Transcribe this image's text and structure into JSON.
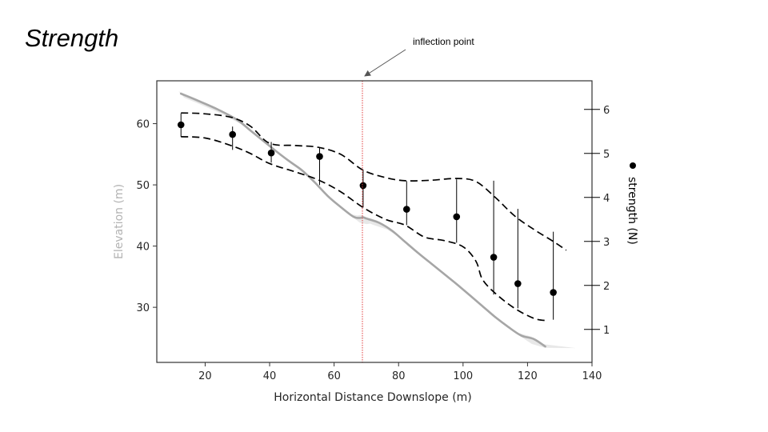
{
  "slide": {
    "title": "Strength"
  },
  "chart_data": {
    "type": "scatter",
    "xlabel": "Horizontal Distance Downslope (m)",
    "ylabel_left": "Elevation (m)",
    "ylabel_right": "strength (N)",
    "xlim": [
      5,
      140
    ],
    "ylim_left": [
      21,
      67
    ],
    "ylim_right": [
      0.25,
      6.65
    ],
    "x_ticks": [
      20,
      40,
      60,
      80,
      100,
      120,
      140
    ],
    "y_left_ticks": [
      30,
      40,
      50,
      60
    ],
    "y_right_ticks": [
      1,
      2,
      3,
      4,
      5,
      6
    ],
    "grid": false,
    "legend": "right-side vertical label with marker",
    "colors": {
      "profile": "#a6a6a6",
      "envelope": "#e6e6e6",
      "points": "#000000",
      "inflection": "#e03c3c",
      "ylabel_left": "#b3b3b3"
    },
    "annotation": {
      "text": "inflection point",
      "x": 70
    },
    "profile": {
      "x": [
        12.5,
        18,
        24,
        30,
        34,
        38,
        42,
        46,
        50,
        54,
        58,
        62,
        66,
        68,
        69,
        70,
        74,
        78,
        82,
        86,
        90,
        94,
        98,
        102,
        106,
        110,
        114,
        118,
        122,
        125.5
      ],
      "elevation": [
        64.9,
        63.7,
        62.3,
        60.6,
        58.9,
        57.2,
        55.5,
        53.9,
        52.4,
        50.4,
        48.2,
        46.4,
        44.8,
        44.6,
        44.7,
        44.5,
        43.8,
        42.5,
        40.7,
        38.9,
        37.2,
        35.5,
        33.8,
        32.0,
        30.2,
        28.4,
        26.8,
        25.4,
        24.8,
        23.6
      ]
    },
    "points": {
      "x": [
        12.5,
        28.5,
        40.5,
        55.5,
        69,
        82.5,
        98,
        109.5,
        117,
        128
      ],
      "strength": [
        5.65,
        5.43,
        5.01,
        4.93,
        4.27,
        3.73,
        3.56,
        2.64,
        2.04,
        1.84
      ],
      "lower": [
        5.38,
        5.08,
        4.79,
        4.28,
        3.77,
        3.37,
        2.97,
        1.79,
        1.48,
        1.22
      ],
      "upper": [
        5.91,
        5.61,
        5.26,
        5.12,
        4.63,
        4.37,
        4.41,
        4.38,
        3.74,
        3.22
      ]
    },
    "upper_band": {
      "x": [
        12.5,
        20,
        28,
        34,
        40,
        48,
        55,
        62,
        69,
        76,
        82,
        90,
        98,
        104,
        110,
        116,
        122,
        128,
        132
      ],
      "y": [
        5.92,
        5.9,
        5.82,
        5.62,
        5.23,
        5.18,
        5.14,
        4.98,
        4.62,
        4.45,
        4.38,
        4.39,
        4.43,
        4.36,
        4.0,
        3.58,
        3.27,
        3.0,
        2.8
      ]
    },
    "lower_band": {
      "x": [
        12.5,
        20,
        28,
        34,
        40,
        48,
        55,
        62,
        69,
        76,
        82,
        88,
        94,
        100,
        104,
        106,
        110,
        116,
        122,
        126
      ],
      "y": [
        5.38,
        5.35,
        5.18,
        5.0,
        4.77,
        4.58,
        4.4,
        4.13,
        3.77,
        3.5,
        3.37,
        3.1,
        3.02,
        2.88,
        2.55,
        2.14,
        1.82,
        1.48,
        1.25,
        1.2
      ]
    }
  }
}
